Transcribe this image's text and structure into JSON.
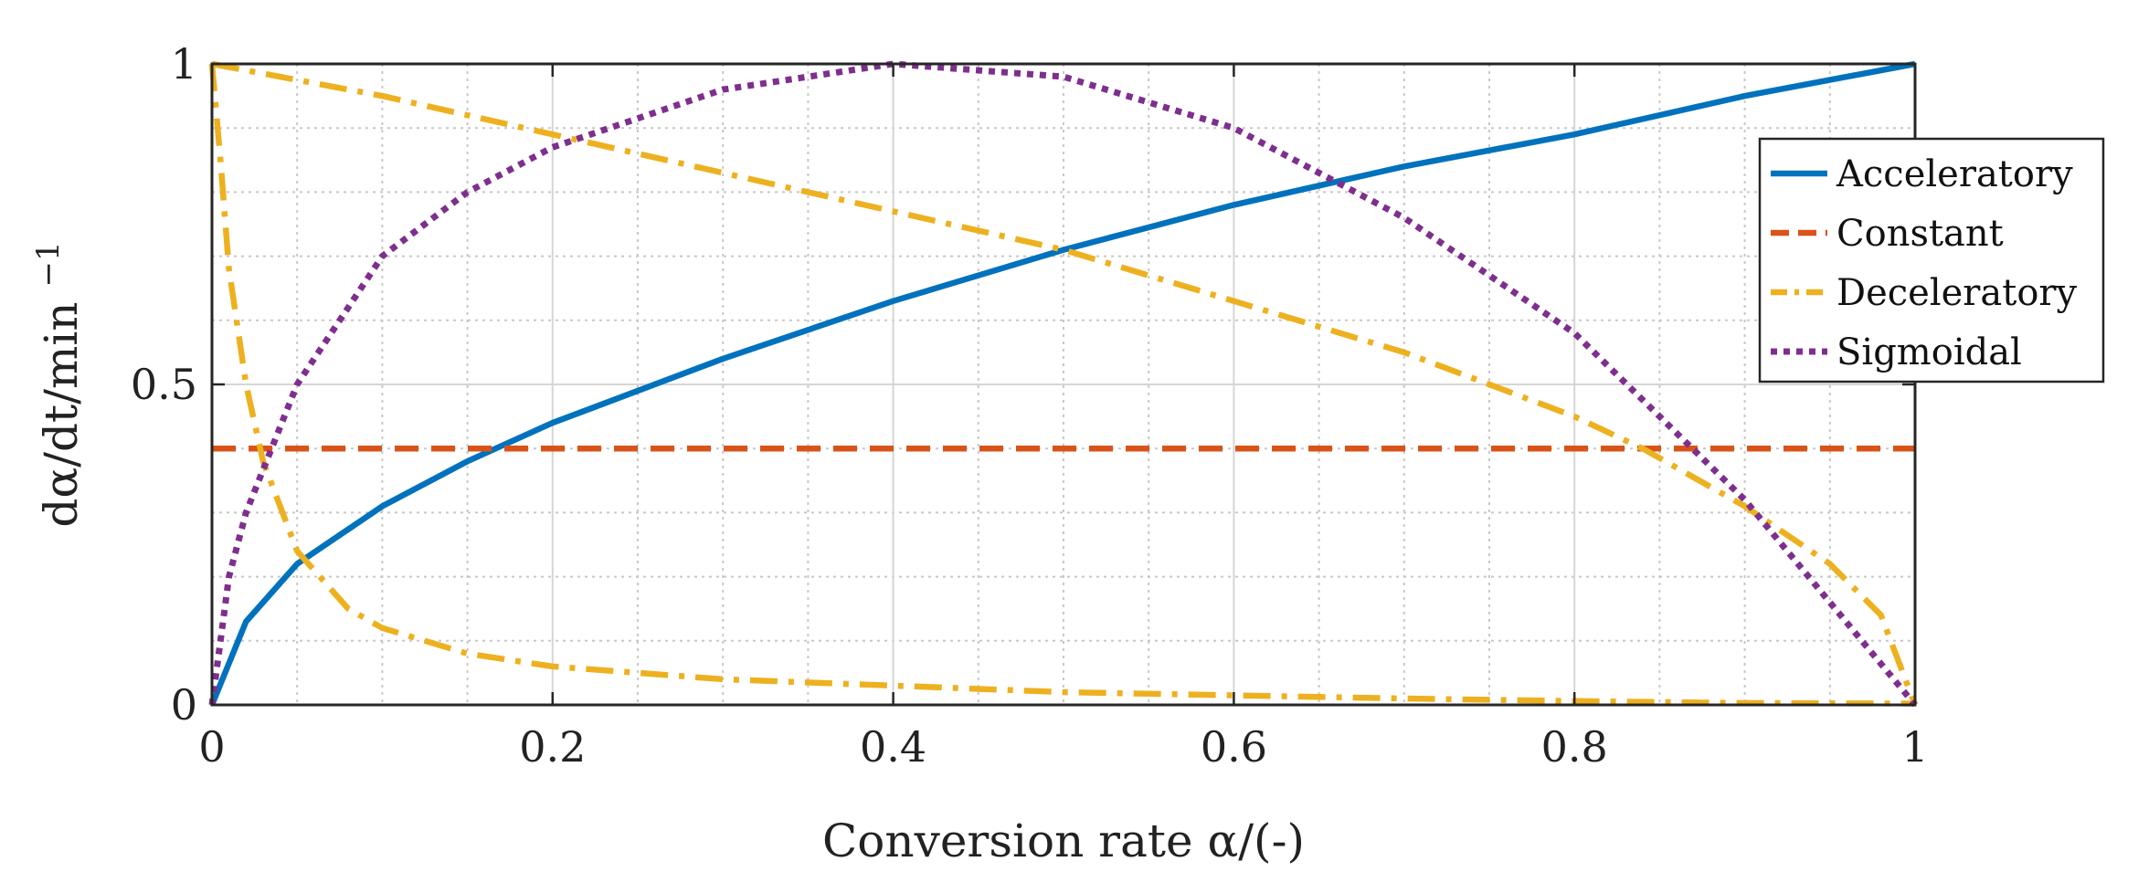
{
  "chart_data": {
    "type": "line",
    "title": "",
    "xlabel": "Conversion rate α/(-)",
    "ylabel": "dα/dt/min",
    "ylabel_superscript": "−1",
    "xlim": [
      0,
      1
    ],
    "ylim": [
      0,
      1
    ],
    "xticks": [
      0,
      0.2,
      0.4,
      0.6,
      0.8,
      1
    ],
    "xtick_labels": [
      "0",
      "0.2",
      "0.4",
      "0.6",
      "0.8",
      "1"
    ],
    "yticks": [
      0,
      0.5,
      1
    ],
    "ytick_labels": [
      "0",
      "0.5",
      "1"
    ],
    "grid": true,
    "minor_grid": true,
    "legend_position": "top-right (outside)",
    "series": [
      {
        "name": "Acceleratory",
        "color": "#0072BD",
        "style": "solid",
        "x": [
          0,
          0.02,
          0.05,
          0.1,
          0.15,
          0.2,
          0.3,
          0.4,
          0.5,
          0.6,
          0.7,
          0.8,
          0.9,
          1.0
        ],
        "y": [
          0,
          0.13,
          0.22,
          0.31,
          0.38,
          0.44,
          0.54,
          0.63,
          0.71,
          0.78,
          0.84,
          0.89,
          0.95,
          1.0
        ]
      },
      {
        "name": "Constant",
        "color": "#D95319",
        "style": "dashed",
        "x": [
          0,
          1
        ],
        "y": [
          0.4,
          0.4
        ]
      },
      {
        "name": "Deceleratory",
        "color": "#EDB120",
        "style": "dashdot",
        "x": [
          0,
          0.1,
          0.2,
          0.3,
          0.4,
          0.5,
          0.6,
          0.7,
          0.8,
          0.84,
          0.9,
          0.95,
          0.98,
          1.0
        ],
        "y": [
          1.0,
          0.95,
          0.89,
          0.83,
          0.77,
          0.71,
          0.63,
          0.55,
          0.45,
          0.4,
          0.31,
          0.22,
          0.14,
          0
        ]
      },
      {
        "name": "Deceleratory",
        "color": "#EDB120",
        "style": "dashdot",
        "x": [
          0,
          0.005,
          0.01,
          0.02,
          0.03,
          0.05,
          0.08,
          0.1,
          0.15,
          0.2,
          0.3,
          0.4,
          0.5,
          0.6,
          0.7,
          0.8,
          0.9,
          1.0
        ],
        "y": [
          1.0,
          0.85,
          0.68,
          0.5,
          0.38,
          0.24,
          0.15,
          0.12,
          0.08,
          0.06,
          0.04,
          0.03,
          0.02,
          0.015,
          0.01,
          0.006,
          0.003,
          0.002
        ],
        "in_legend": false
      },
      {
        "name": "Sigmoidal",
        "color": "#7E2F8E",
        "style": "dotted",
        "x": [
          0,
          0.01,
          0.02,
          0.05,
          0.1,
          0.15,
          0.2,
          0.3,
          0.4,
          0.5,
          0.6,
          0.7,
          0.8,
          0.9,
          0.95,
          1.0
        ],
        "y": [
          0,
          0.2,
          0.3,
          0.5,
          0.7,
          0.8,
          0.87,
          0.96,
          1.0,
          0.98,
          0.9,
          0.76,
          0.58,
          0.32,
          0.16,
          0
        ]
      }
    ]
  }
}
